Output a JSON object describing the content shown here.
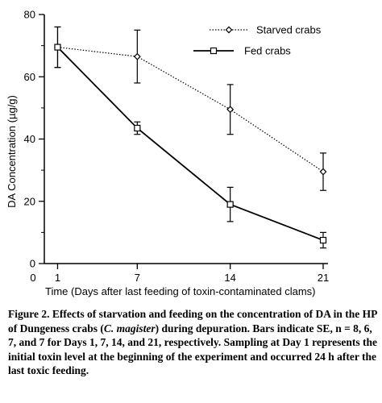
{
  "chart_data": {
    "type": "line",
    "title": "",
    "xlabel": "Time (Days after last feeding of toxin-contaminated clams)",
    "ylabel": "DA Concentration (µg/g)",
    "xlim": [
      0,
      21
    ],
    "ylim": [
      0,
      80
    ],
    "x_ticks": [
      0,
      1,
      7,
      14,
      21
    ],
    "y_ticks": [
      0,
      20,
      40,
      60,
      80
    ],
    "grid": false,
    "legend_position": "top-right",
    "series": [
      {
        "name": "Starved crabs",
        "marker": "diamond",
        "line_style": "dotted",
        "x": [
          1,
          7,
          14,
          21
        ],
        "y": [
          69.5,
          66.5,
          49.5,
          29.5
        ],
        "error": [
          6.5,
          8.5,
          8,
          6
        ]
      },
      {
        "name": "Fed crabs",
        "marker": "square",
        "line_style": "solid",
        "x": [
          1,
          7,
          14,
          21
        ],
        "y": [
          69.5,
          43.5,
          19,
          7.5
        ],
        "error": [
          6.5,
          2,
          5.5,
          2.5
        ]
      }
    ]
  },
  "caption": {
    "lead": "Figure 2.  Effects of starvation and feeding on the concentration of DA in the HP of Dungeness crabs (",
    "species": "C. magister",
    "rest": ") during depuration. Bars indicate SE, n = 8, 6, 7, and 7 for Days 1, 7, 14, and 21, respectively. Sampling at Day 1 represents the initial toxin level at the beginning of the experiment and occurred 24 h after the last toxic feeding."
  }
}
